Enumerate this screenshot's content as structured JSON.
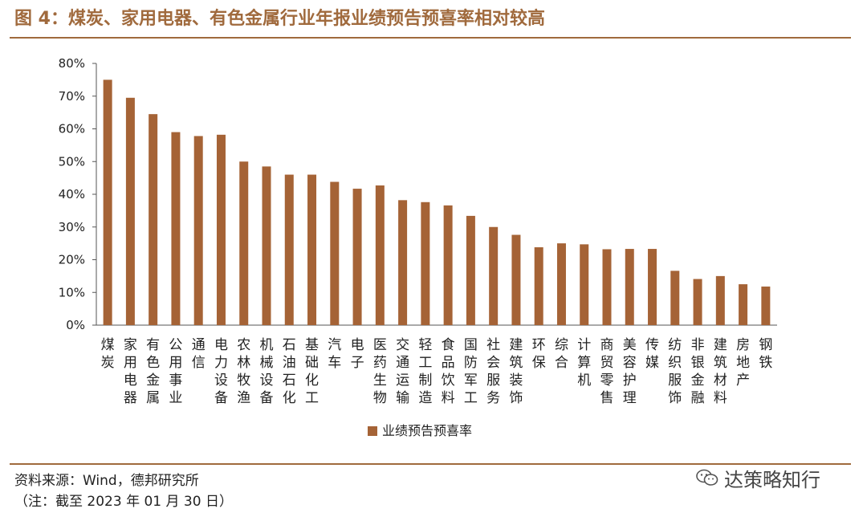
{
  "header": {
    "title": "图 4：煤炭、家用电器、有色金属行业年报业绩预告预喜率相对较高"
  },
  "colors": {
    "accent": "#a06a3d",
    "bar": "#a56336"
  },
  "chart_data": {
    "type": "bar",
    "categories": [
      "煤炭",
      "家用电器",
      "有色金属",
      "公用事业",
      "通信",
      "电力设备",
      "农林牧渔",
      "机械设备",
      "石油石化",
      "基础化工",
      "汽车",
      "电子",
      "医药生物",
      "交通运输",
      "轻工制造",
      "食品饮料",
      "国防军工",
      "社会服务",
      "建筑装饰",
      "环保",
      "综合",
      "计算机",
      "商贸零售",
      "美容护理",
      "传媒",
      "纺织服饰",
      "非银金融",
      "建筑材料",
      "房地产",
      "钢铁"
    ],
    "series": [
      {
        "name": "业绩预告预喜率",
        "values": [
          75,
          69.5,
          64.5,
          59,
          57.8,
          58.2,
          50,
          48.5,
          46,
          46,
          43.8,
          41.7,
          42.7,
          38.2,
          37.6,
          36.6,
          33.4,
          30,
          27.6,
          23.8,
          25,
          24.7,
          23.2,
          23.3,
          23.3,
          16.6,
          14.1,
          15,
          12.5,
          11.8
        ]
      }
    ],
    "ylim": [
      0,
      80
    ],
    "yticks": [
      "0%",
      "10%",
      "20%",
      "30%",
      "40%",
      "50%",
      "60%",
      "70%",
      "80%"
    ],
    "grid": false,
    "legend": "bottom-center"
  },
  "footer": {
    "source": "资料来源：Wind，德邦研究所",
    "note": "（注：截至 2023 年 01 月 30 日）",
    "watermark": "达策略知行",
    "watermark_icon": "wechat-icon"
  }
}
